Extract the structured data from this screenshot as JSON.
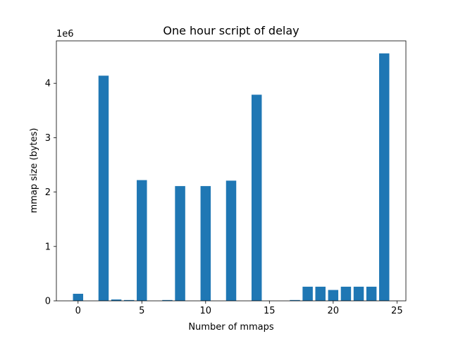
{
  "chart_data": {
    "type": "bar",
    "title": "One hour script of delay",
    "xlabel": "Number of mmaps",
    "ylabel": "mmap size (bytes)",
    "y_offset_label": "1e6",
    "xlim": [
      -1.7,
      25.7
    ],
    "ylim": [
      0,
      4.78
    ],
    "y_unit_multiplier": 1000000,
    "x_ticks": [
      0,
      5,
      10,
      15,
      20,
      25
    ],
    "x_tick_labels": [
      "0",
      "5",
      "10",
      "15",
      "20",
      "25"
    ],
    "y_ticks": [
      0,
      1,
      2,
      3,
      4
    ],
    "y_tick_labels": [
      "0",
      "1",
      "2",
      "3",
      "4"
    ],
    "bar_color": "#1f77b4",
    "grid": false,
    "legend": false,
    "x": [
      0,
      2,
      3,
      4,
      5,
      7,
      8,
      10,
      12,
      14,
      17,
      18,
      19,
      20,
      21,
      22,
      23,
      24
    ],
    "values": [
      0.13,
      4.14,
      0.025,
      0.015,
      2.22,
      0.015,
      2.11,
      2.11,
      2.21,
      3.79,
      0.015,
      0.26,
      0.26,
      0.2,
      0.26,
      0.26,
      0.26,
      4.55
    ]
  }
}
